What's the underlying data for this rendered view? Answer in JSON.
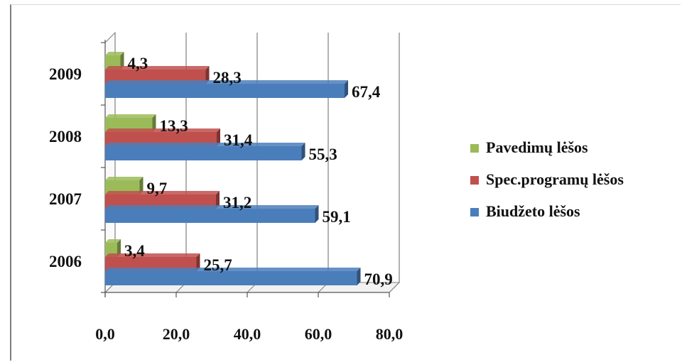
{
  "chart_data": {
    "type": "bar",
    "orientation": "horizontal",
    "style": "3d-clustered",
    "categories": [
      "2006",
      "2007",
      "2008",
      "2009"
    ],
    "series": [
      {
        "name": "Biudžeto lėšos",
        "color": "#4a7ebb",
        "values": [
          70.9,
          59.1,
          55.3,
          67.4
        ],
        "labels": [
          "70,9",
          "59,1",
          "55,3",
          "67,4"
        ]
      },
      {
        "name": "Spec.programų lėšos",
        "color": "#c0504d",
        "values": [
          25.7,
          31.2,
          31.4,
          28.3
        ],
        "labels": [
          "25,7",
          "31,2",
          "31,4",
          "28,3"
        ]
      },
      {
        "name": "Pavedimų lėšos",
        "color": "#9bbb59",
        "values": [
          3.4,
          9.7,
          13.3,
          4.3
        ],
        "labels": [
          "3,4",
          "9,7",
          "13,3",
          "4,3"
        ]
      }
    ],
    "xlim": [
      0,
      80
    ],
    "xticks": [
      "0,0",
      "20,0",
      "40,0",
      "60,0",
      "80,0"
    ],
    "grid": true,
    "legend_position": "right",
    "legend_order": [
      "Pavedimų lėšos",
      "Spec.programų lėšos",
      "Biudžeto lėšos"
    ]
  }
}
